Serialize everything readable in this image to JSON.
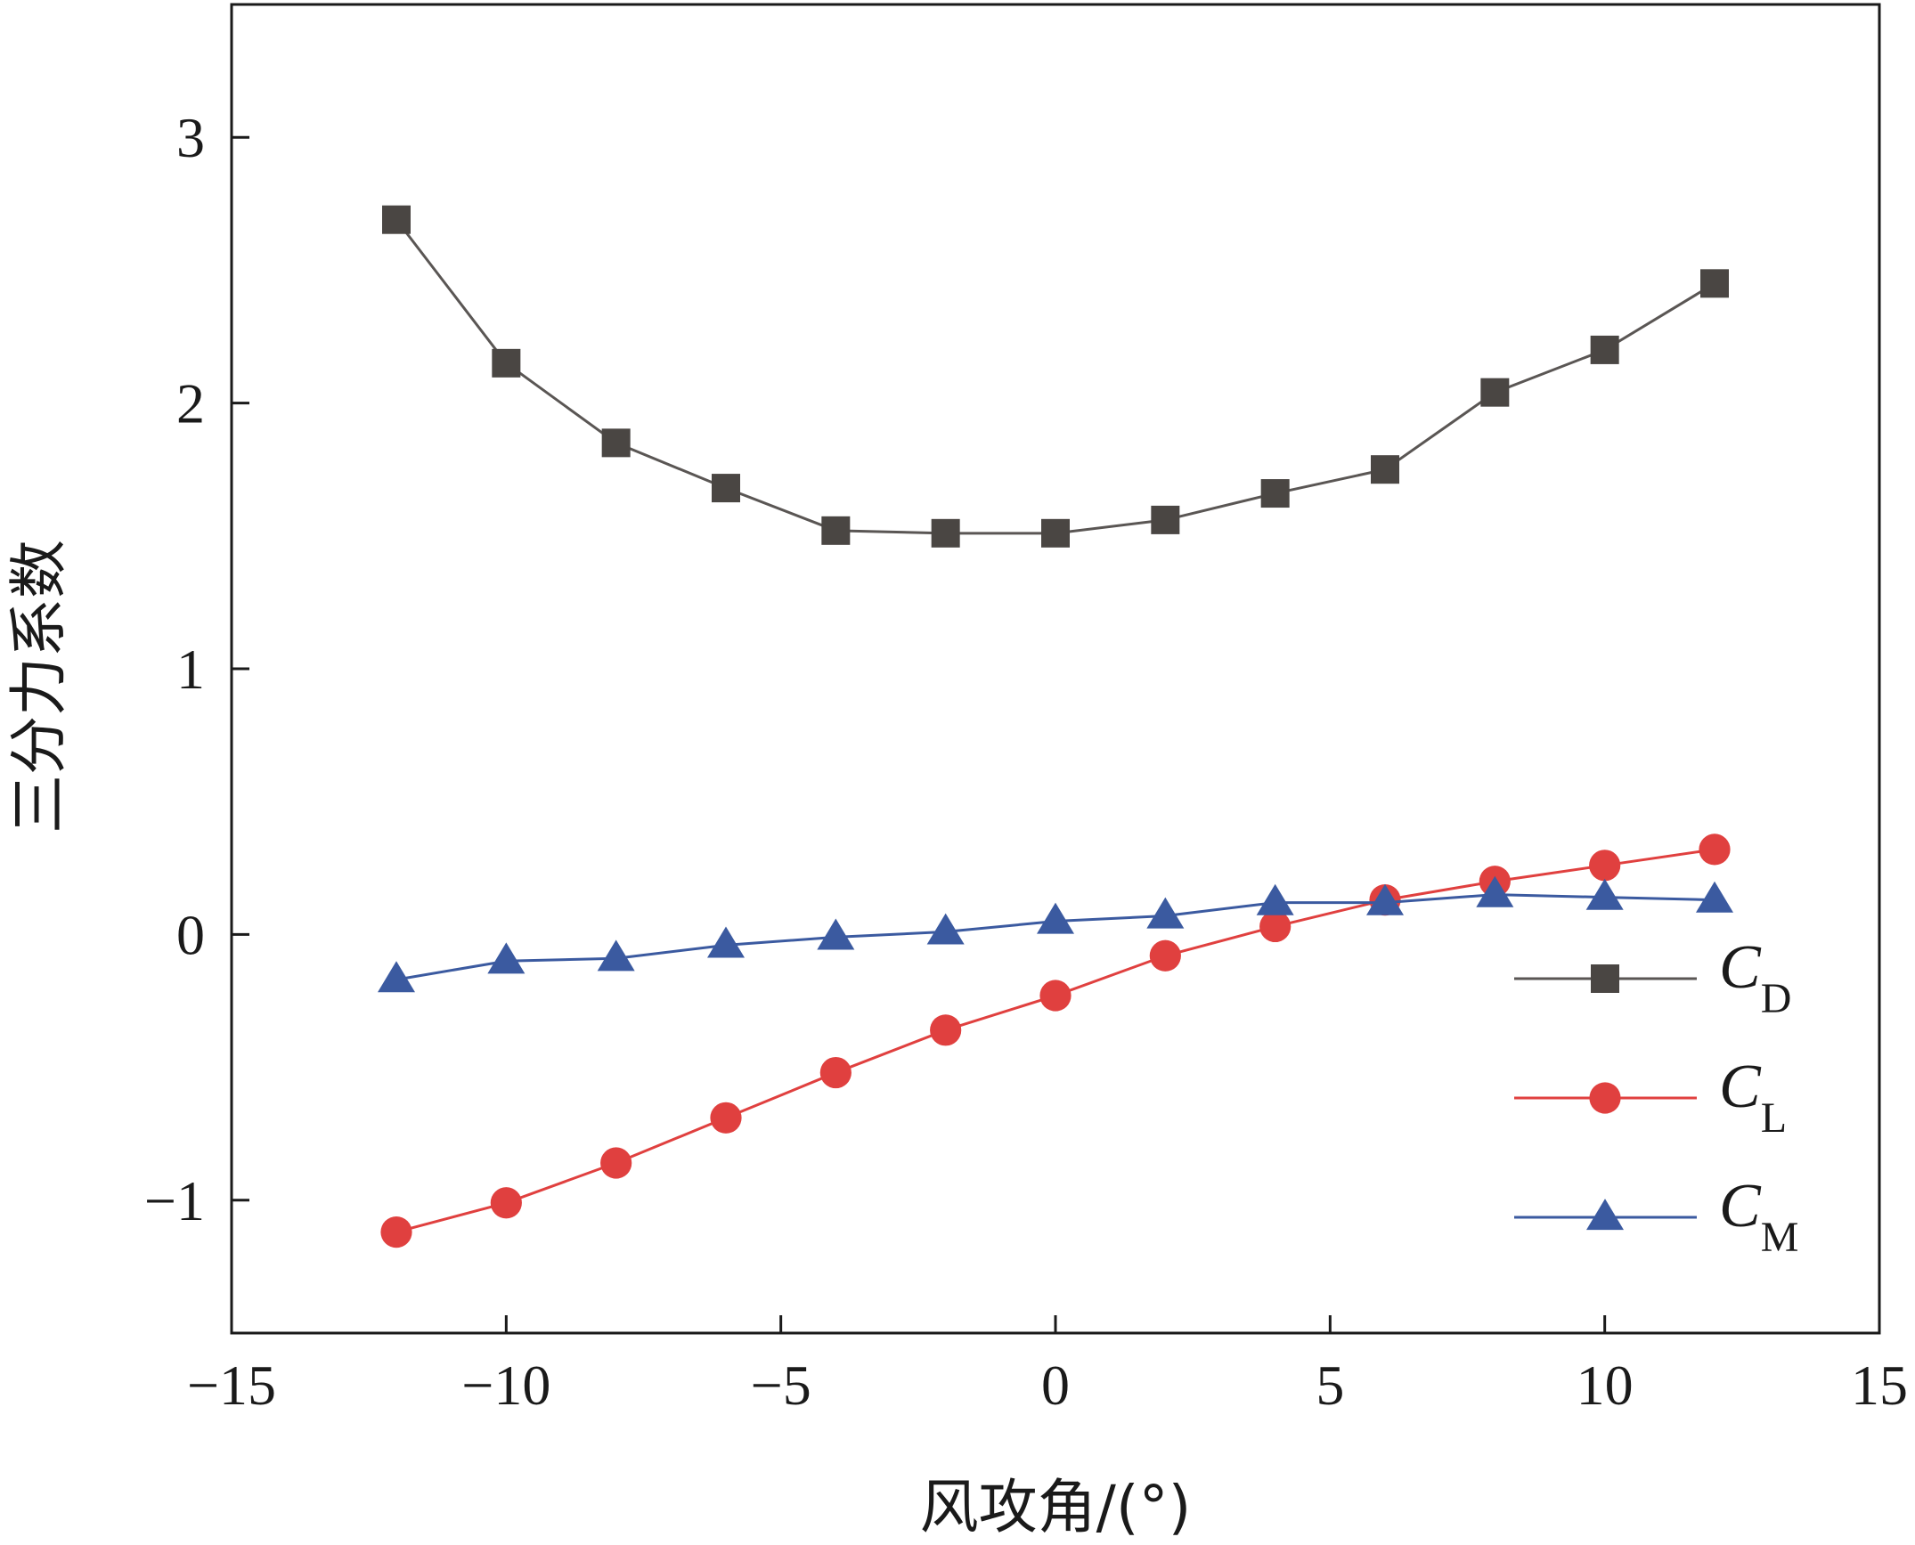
{
  "chart_data": {
    "type": "line",
    "xlabel": "风攻角/(°)",
    "ylabel": "三分力系数",
    "xlim": [
      -15,
      15
    ],
    "ylim": [
      -1.5,
      3.5
    ],
    "xticks": [
      -15,
      -10,
      -5,
      0,
      5,
      10,
      15
    ],
    "xtick_labels": [
      "−15",
      "−10",
      "−5",
      "0",
      "5",
      "10",
      "15"
    ],
    "yticks": [
      -1,
      0,
      1,
      2,
      3
    ],
    "ytick_labels": [
      "−1",
      "0",
      "1",
      "2",
      "3"
    ],
    "legend_position": "bottom-right",
    "grid": false,
    "x": [
      -12,
      -10,
      -8,
      -6,
      -4,
      -2,
      0,
      2,
      4,
      6,
      8,
      10,
      12
    ],
    "series": [
      {
        "name": "C",
        "subscript": "D",
        "marker": "square",
        "color": "#4a4643",
        "line_color": "#5a5654",
        "values": [
          2.69,
          2.15,
          1.85,
          1.68,
          1.52,
          1.51,
          1.51,
          1.56,
          1.66,
          1.75,
          2.04,
          2.2,
          2.45
        ]
      },
      {
        "name": "C",
        "subscript": "L",
        "marker": "circle",
        "color": "#e0403f",
        "line_color": "#e0403f",
        "values": [
          -1.12,
          -1.01,
          -0.86,
          -0.69,
          -0.52,
          -0.36,
          -0.23,
          -0.08,
          0.03,
          0.13,
          0.2,
          0.26,
          0.32
        ]
      },
      {
        "name": "C",
        "subscript": "M",
        "marker": "triangle",
        "color": "#3b5aa0",
        "line_color": "#3b5aa0",
        "values": [
          -0.17,
          -0.1,
          -0.09,
          -0.04,
          -0.01,
          0.01,
          0.05,
          0.07,
          0.12,
          0.12,
          0.15,
          0.14,
          0.13
        ]
      }
    ]
  }
}
